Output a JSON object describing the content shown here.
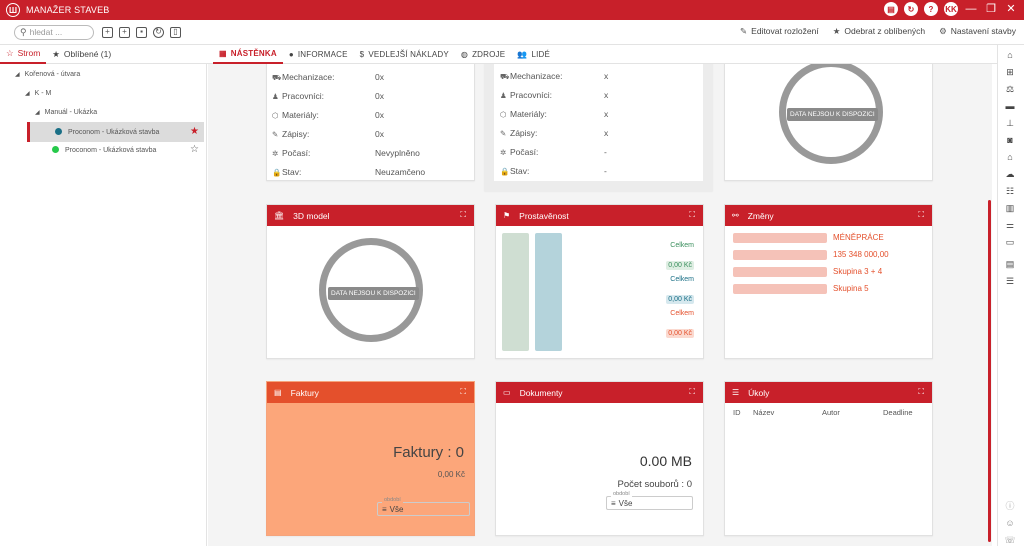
{
  "app": {
    "title": "MANAŽER STAVEB",
    "user_initials": "KK",
    "help": "?"
  },
  "toolbar": {
    "search_placeholder": "hledat ...",
    "actions": [
      "Editovat rozložení",
      "Odebrat z oblíbených",
      "Nastavení stavby"
    ]
  },
  "left_tabs": [
    {
      "label": "Strom"
    },
    {
      "label": "Oblíbené (1)"
    }
  ],
  "tree": [
    {
      "label": "Kořenová - útvara"
    },
    {
      "label": "K - M"
    },
    {
      "label": "Manuál - Ukázka"
    },
    {
      "label": "Proconom - Ukázková stavba",
      "dot": "#1a6f86"
    },
    {
      "label": "Proconom - Ukázková stavba",
      "dot": "#26c94a"
    }
  ],
  "main_tabs": [
    "NÁSTĚNKA",
    "INFORMACE",
    "VEDLEJŠÍ NÁKLADY",
    "ZDROJE",
    "LIDÉ"
  ],
  "info_card1": {
    "rows": [
      [
        "Mechanizace:",
        "0x"
      ],
      [
        "Pracovníci:",
        "0x"
      ],
      [
        "Materiály:",
        "0x"
      ],
      [
        "Zápisy:",
        "0x"
      ],
      [
        "Počasí:",
        "Nevyplněno"
      ],
      [
        "Stav:",
        "Neuzamčeno"
      ]
    ]
  },
  "info_card2": {
    "rows": [
      [
        "Mechanizace:",
        "x"
      ],
      [
        "Pracovníci:",
        "x"
      ],
      [
        "Materiály:",
        "x"
      ],
      [
        "Zápisy:",
        "x"
      ],
      [
        "Počasí:",
        "-"
      ],
      [
        "Stav:",
        "-"
      ]
    ]
  },
  "no_data": "DATA NEJSOU K DISPOZICI",
  "cards": {
    "model3d": {
      "title": "3D model"
    },
    "prostavenost": {
      "title": "Prostavěnost",
      "labels": [
        "Celkem",
        "0,00 Kč",
        "Celkem",
        "0,00 Kč",
        "Celkem",
        "0,00 Kč"
      ]
    },
    "zmeny": {
      "title": "Změny",
      "items": [
        "MÉNĚPRÁCE",
        "135 348 000,00",
        "Skupina 3 + 4",
        "Skupina 5"
      ]
    },
    "faktury": {
      "title": "Faktury",
      "count_label": "Faktury : 0",
      "amount": "0,00 Kč",
      "filter_label": "období",
      "filter_value": "Vše"
    },
    "dokumenty": {
      "title": "Dokumenty",
      "size": "0.00 MB",
      "files": "Počet souborů : 0",
      "filter_label": "období",
      "filter_value": "Vše"
    },
    "ukoly": {
      "title": "Úkoly",
      "columns": [
        "ID",
        "Název",
        "Autor",
        "Deadline"
      ]
    }
  },
  "colors": {
    "brand": "#c8202a",
    "faktury_head": "#e4502c",
    "faktury_body": "#fca67a"
  }
}
